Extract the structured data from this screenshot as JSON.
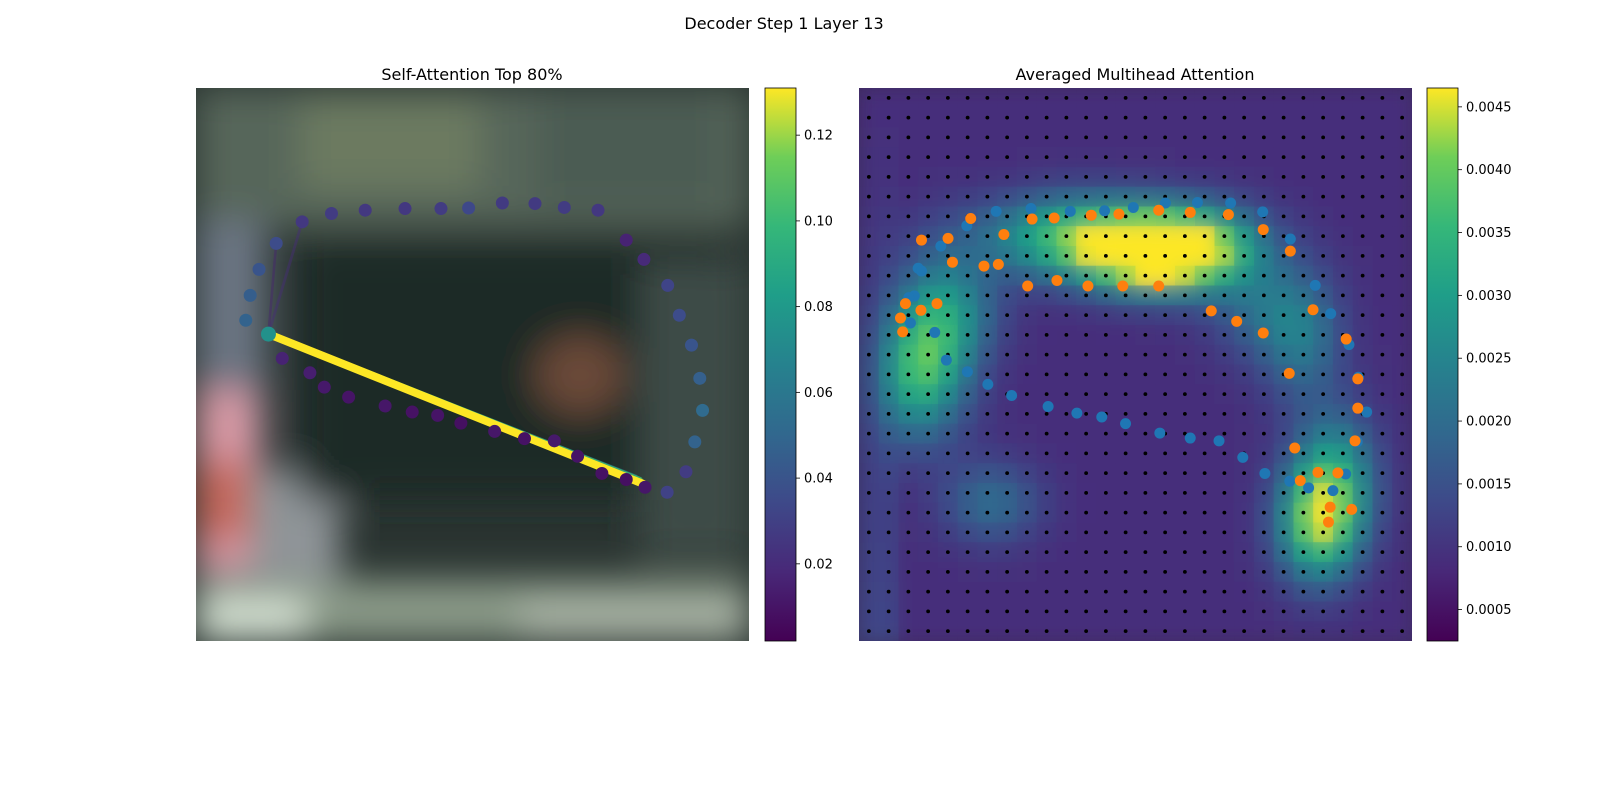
{
  "figure": {
    "title": "Decoder Step 1 Layer 13"
  },
  "chart_data": [
    {
      "type": "scatter",
      "title": "Self-Attention Top 80%",
      "background": "blurred photo",
      "colormap": "viridis",
      "colorbar": {
        "ticks": [
          0.02,
          0.04,
          0.06,
          0.08,
          0.1,
          0.12
        ],
        "tick_labels": [
          "0.02",
          "0.04",
          "0.06",
          "0.08",
          "0.10",
          "0.12"
        ],
        "range": [
          0.002,
          0.131
        ]
      },
      "grid": false,
      "legend": "none",
      "xlim": [
        0,
        1
      ],
      "ylim": [
        0,
        1
      ],
      "query_point": {
        "x": 0.131,
        "y": 0.555,
        "weight": 0.075
      },
      "points": [
        {
          "x": 0.131,
          "y": 0.555,
          "w": 0.075
        },
        {
          "x": 0.156,
          "y": 0.511,
          "w": 0.016
        },
        {
          "x": 0.206,
          "y": 0.485,
          "w": 0.014
        },
        {
          "x": 0.232,
          "y": 0.459,
          "w": 0.012
        },
        {
          "x": 0.276,
          "y": 0.441,
          "w": 0.01
        },
        {
          "x": 0.342,
          "y": 0.425,
          "w": 0.011
        },
        {
          "x": 0.391,
          "y": 0.414,
          "w": 0.009
        },
        {
          "x": 0.437,
          "y": 0.408,
          "w": 0.01
        },
        {
          "x": 0.479,
          "y": 0.394,
          "w": 0.008
        },
        {
          "x": 0.54,
          "y": 0.379,
          "w": 0.011
        },
        {
          "x": 0.594,
          "y": 0.366,
          "w": 0.009
        },
        {
          "x": 0.648,
          "y": 0.362,
          "w": 0.012
        },
        {
          "x": 0.69,
          "y": 0.334,
          "w": 0.01
        },
        {
          "x": 0.734,
          "y": 0.303,
          "w": 0.009
        },
        {
          "x": 0.778,
          "y": 0.292,
          "w": 0.008
        },
        {
          "x": 0.812,
          "y": 0.278,
          "w": 0.011
        },
        {
          "x": 0.852,
          "y": 0.269,
          "w": 0.031
        },
        {
          "x": 0.886,
          "y": 0.306,
          "w": 0.028
        },
        {
          "x": 0.902,
          "y": 0.36,
          "w": 0.048
        },
        {
          "x": 0.916,
          "y": 0.417,
          "w": 0.052
        },
        {
          "x": 0.911,
          "y": 0.475,
          "w": 0.046
        },
        {
          "x": 0.896,
          "y": 0.535,
          "w": 0.04
        },
        {
          "x": 0.874,
          "y": 0.589,
          "w": 0.036
        },
        {
          "x": 0.853,
          "y": 0.643,
          "w": 0.032
        },
        {
          "x": 0.81,
          "y": 0.69,
          "w": 0.019
        },
        {
          "x": 0.778,
          "y": 0.725,
          "w": 0.016
        },
        {
          "x": 0.727,
          "y": 0.779,
          "w": 0.026
        },
        {
          "x": 0.666,
          "y": 0.784,
          "w": 0.028
        },
        {
          "x": 0.613,
          "y": 0.791,
          "w": 0.027
        },
        {
          "x": 0.554,
          "y": 0.792,
          "w": 0.027
        },
        {
          "x": 0.493,
          "y": 0.783,
          "w": 0.034
        },
        {
          "x": 0.443,
          "y": 0.782,
          "w": 0.028
        },
        {
          "x": 0.378,
          "y": 0.782,
          "w": 0.026
        },
        {
          "x": 0.306,
          "y": 0.779,
          "w": 0.026
        },
        {
          "x": 0.245,
          "y": 0.773,
          "w": 0.028
        },
        {
          "x": 0.192,
          "y": 0.758,
          "w": 0.026
        },
        {
          "x": 0.145,
          "y": 0.719,
          "w": 0.036
        },
        {
          "x": 0.114,
          "y": 0.672,
          "w": 0.04
        },
        {
          "x": 0.098,
          "y": 0.625,
          "w": 0.045
        },
        {
          "x": 0.09,
          "y": 0.58,
          "w": 0.048
        }
      ],
      "attention_lines": [
        {
          "from": [
            0.131,
            0.555
          ],
          "to": [
            0.809,
            0.284
          ],
          "w": 0.131
        },
        {
          "from": [
            0.131,
            0.555
          ],
          "to": [
            0.802,
            0.291
          ],
          "w": 0.1
        },
        {
          "from": [
            0.131,
            0.555
          ],
          "to": [
            0.795,
            0.297
          ],
          "w": 0.055
        },
        {
          "from": [
            0.131,
            0.555
          ],
          "to": [
            0.192,
            0.758
          ],
          "w": 0.02
        },
        {
          "from": [
            0.131,
            0.555
          ],
          "to": [
            0.145,
            0.719
          ],
          "w": 0.015
        }
      ]
    },
    {
      "type": "heatmap",
      "title": "Averaged Multihead Attention",
      "colormap": "viridis",
      "colorbar": {
        "ticks": [
          0.0005,
          0.001,
          0.0015,
          0.002,
          0.0025,
          0.003,
          0.0035,
          0.004,
          0.0045
        ],
        "tick_labels": [
          "0.0005",
          "0.0010",
          "0.0015",
          "0.0020",
          "0.0025",
          "0.0030",
          "0.0035",
          "0.0040",
          "0.0045"
        ],
        "range": [
          0.00025,
          0.00465
        ]
      },
      "grid_size": [
        28,
        28
      ],
      "grid": false,
      "legend": "none",
      "xlim": [
        0,
        1
      ],
      "ylim": [
        0,
        1
      ],
      "attention_hotspots": [
        {
          "x": 0.52,
          "y": 0.7,
          "value": 0.0044,
          "sx": 0.08,
          "sy": 0.045
        },
        {
          "x": 0.4,
          "y": 0.73,
          "value": 0.0037,
          "sx": 0.12,
          "sy": 0.05
        },
        {
          "x": 0.62,
          "y": 0.71,
          "value": 0.0036,
          "sx": 0.08,
          "sy": 0.05
        },
        {
          "x": 0.14,
          "y": 0.54,
          "value": 0.0032,
          "sx": 0.05,
          "sy": 0.1
        },
        {
          "x": 0.09,
          "y": 0.48,
          "value": 0.0024,
          "sx": 0.04,
          "sy": 0.08
        },
        {
          "x": 0.83,
          "y": 0.21,
          "value": 0.0038,
          "sx": 0.05,
          "sy": 0.07
        },
        {
          "x": 0.86,
          "y": 0.3,
          "value": 0.0028,
          "sx": 0.05,
          "sy": 0.08
        },
        {
          "x": 0.24,
          "y": 0.25,
          "value": 0.002,
          "sx": 0.06,
          "sy": 0.05
        },
        {
          "x": 0.8,
          "y": 0.55,
          "value": 0.0022,
          "sx": 0.05,
          "sy": 0.08
        },
        {
          "x": 0.72,
          "y": 0.6,
          "value": 0.0018,
          "sx": 0.06,
          "sy": 0.06
        },
        {
          "x": 0.2,
          "y": 0.6,
          "value": 0.0016,
          "sx": 0.05,
          "sy": 0.06
        }
      ],
      "blue_points": [
        {
          "x": 0.093,
          "y": 0.575
        },
        {
          "x": 0.1,
          "y": 0.624
        },
        {
          "x": 0.107,
          "y": 0.674
        },
        {
          "x": 0.137,
          "y": 0.558
        },
        {
          "x": 0.158,
          "y": 0.508
        },
        {
          "x": 0.196,
          "y": 0.487
        },
        {
          "x": 0.233,
          "y": 0.464
        },
        {
          "x": 0.276,
          "y": 0.444
        },
        {
          "x": 0.342,
          "y": 0.424
        },
        {
          "x": 0.394,
          "y": 0.412
        },
        {
          "x": 0.439,
          "y": 0.405
        },
        {
          "x": 0.482,
          "y": 0.393
        },
        {
          "x": 0.544,
          "y": 0.376
        },
        {
          "x": 0.599,
          "y": 0.367
        },
        {
          "x": 0.651,
          "y": 0.362
        },
        {
          "x": 0.694,
          "y": 0.332
        },
        {
          "x": 0.734,
          "y": 0.303
        },
        {
          "x": 0.779,
          "y": 0.289
        },
        {
          "x": 0.813,
          "y": 0.277
        },
        {
          "x": 0.857,
          "y": 0.272
        },
        {
          "x": 0.88,
          "y": 0.302
        },
        {
          "x": 0.901,
          "y": 0.36
        },
        {
          "x": 0.918,
          "y": 0.414
        },
        {
          "x": 0.903,
          "y": 0.477
        },
        {
          "x": 0.886,
          "y": 0.536
        },
        {
          "x": 0.853,
          "y": 0.592
        },
        {
          "x": 0.825,
          "y": 0.643
        },
        {
          "x": 0.78,
          "y": 0.727
        },
        {
          "x": 0.73,
          "y": 0.776
        },
        {
          "x": 0.672,
          "y": 0.792
        },
        {
          "x": 0.612,
          "y": 0.793
        },
        {
          "x": 0.554,
          "y": 0.792
        },
        {
          "x": 0.496,
          "y": 0.784
        },
        {
          "x": 0.444,
          "y": 0.778
        },
        {
          "x": 0.382,
          "y": 0.777
        },
        {
          "x": 0.311,
          "y": 0.782
        },
        {
          "x": 0.248,
          "y": 0.777
        },
        {
          "x": 0.195,
          "y": 0.751
        },
        {
          "x": 0.148,
          "y": 0.714
        },
        {
          "x": 0.113,
          "y": 0.669
        },
        {
          "x": 0.09,
          "y": 0.621
        }
      ],
      "orange_points": [
        {
          "x": 0.075,
          "y": 0.584
        },
        {
          "x": 0.084,
          "y": 0.61
        },
        {
          "x": 0.079,
          "y": 0.559
        },
        {
          "x": 0.112,
          "y": 0.598
        },
        {
          "x": 0.141,
          "y": 0.61
        },
        {
          "x": 0.169,
          "y": 0.685
        },
        {
          "x": 0.161,
          "y": 0.728
        },
        {
          "x": 0.113,
          "y": 0.725
        },
        {
          "x": 0.226,
          "y": 0.678
        },
        {
          "x": 0.202,
          "y": 0.764
        },
        {
          "x": 0.262,
          "y": 0.735
        },
        {
          "x": 0.313,
          "y": 0.763
        },
        {
          "x": 0.305,
          "y": 0.642
        },
        {
          "x": 0.353,
          "y": 0.765
        },
        {
          "x": 0.42,
          "y": 0.77
        },
        {
          "x": 0.47,
          "y": 0.772
        },
        {
          "x": 0.477,
          "y": 0.642
        },
        {
          "x": 0.542,
          "y": 0.779
        },
        {
          "x": 0.599,
          "y": 0.775
        },
        {
          "x": 0.542,
          "y": 0.642
        },
        {
          "x": 0.414,
          "y": 0.642
        },
        {
          "x": 0.358,
          "y": 0.652
        },
        {
          "x": 0.252,
          "y": 0.681
        },
        {
          "x": 0.637,
          "y": 0.597
        },
        {
          "x": 0.683,
          "y": 0.578
        },
        {
          "x": 0.731,
          "y": 0.557
        },
        {
          "x": 0.668,
          "y": 0.771
        },
        {
          "x": 0.731,
          "y": 0.744
        },
        {
          "x": 0.78,
          "y": 0.705
        },
        {
          "x": 0.821,
          "y": 0.599
        },
        {
          "x": 0.881,
          "y": 0.546
        },
        {
          "x": 0.902,
          "y": 0.474
        },
        {
          "x": 0.902,
          "y": 0.421
        },
        {
          "x": 0.897,
          "y": 0.362
        },
        {
          "x": 0.866,
          "y": 0.304
        },
        {
          "x": 0.778,
          "y": 0.484
        },
        {
          "x": 0.788,
          "y": 0.349
        },
        {
          "x": 0.83,
          "y": 0.305
        },
        {
          "x": 0.852,
          "y": 0.242
        },
        {
          "x": 0.798,
          "y": 0.29
        },
        {
          "x": 0.849,
          "y": 0.215
        },
        {
          "x": 0.891,
          "y": 0.238
        }
      ]
    }
  ]
}
